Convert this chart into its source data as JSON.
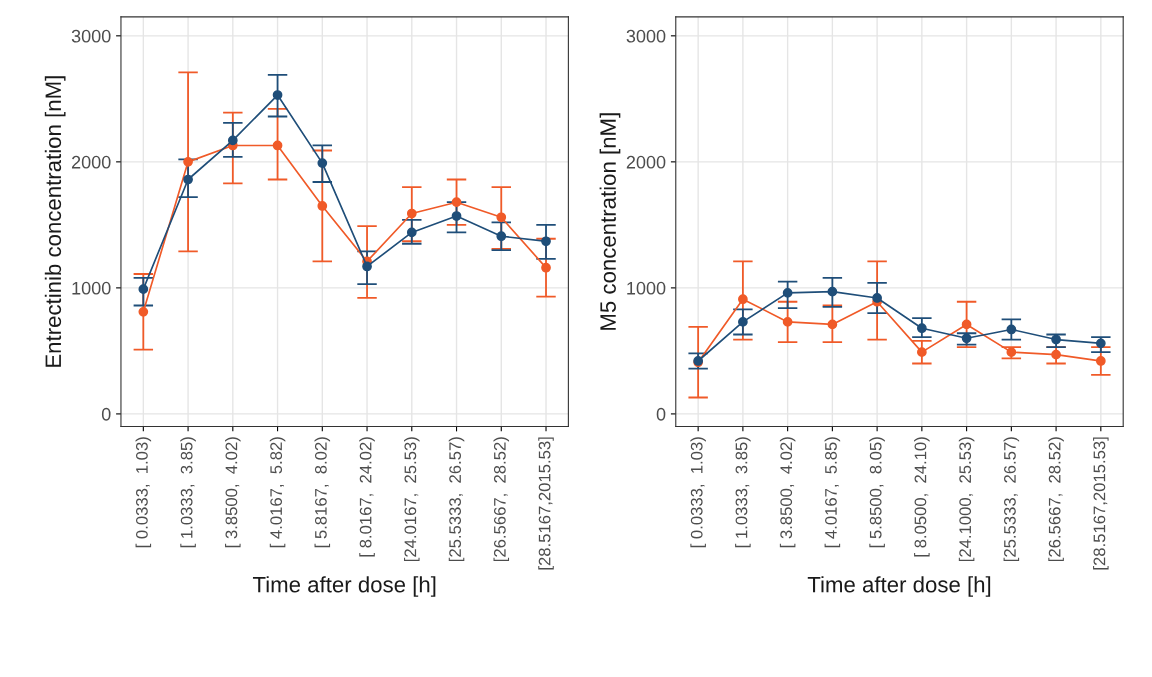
{
  "chart_data": [
    {
      "type": "line",
      "xlabel": "Time after dose [h]",
      "ylabel": "Entrectinib concentration [nM]",
      "categories": [
        "[ 0.0333,  1.03)",
        "[ 1.0333,  3.85)",
        "[ 3.8500,  4.02)",
        "[ 4.0167,  5.82)",
        "[ 5.8167,  8.02)",
        "[ 8.0167,  24.02)",
        "[24.0167,  25.53)",
        "[25.5333,  26.57)",
        "[26.5667,  28.52)",
        "[28.5167,2015.53]"
      ],
      "ylim": [
        -100,
        3150
      ],
      "yticks": [
        0,
        1000,
        2000,
        3000
      ],
      "grid": true,
      "marker": "circle",
      "line_style": "solid",
      "series": [
        {
          "color": "#f05a28",
          "values": [
            810,
            2000,
            2130,
            2130,
            1650,
            1210,
            1590,
            1680,
            1560,
            1160
          ],
          "errors": [
            [
              510,
              1110
            ],
            [
              1290,
              2710
            ],
            [
              1830,
              2390
            ],
            [
              1860,
              2420
            ],
            [
              1210,
              2090
            ],
            [
              920,
              1490
            ],
            [
              1370,
              1800
            ],
            [
              1500,
              1860
            ],
            [
              1310,
              1800
            ],
            [
              930,
              1390
            ]
          ]
        },
        {
          "color": "#1f4e79",
          "values": [
            990,
            1860,
            2170,
            2530,
            1990,
            1170,
            1440,
            1570,
            1410,
            1370
          ],
          "errors": [
            [
              860,
              1080
            ],
            [
              1720,
              2020
            ],
            [
              2040,
              2310
            ],
            [
              2360,
              2690
            ],
            [
              1840,
              2130
            ],
            [
              1030,
              1290
            ],
            [
              1350,
              1540
            ],
            [
              1440,
              1680
            ],
            [
              1300,
              1520
            ],
            [
              1230,
              1500
            ]
          ]
        }
      ]
    },
    {
      "type": "line",
      "xlabel": "Time after dose [h]",
      "ylabel": "M5 concentration [nM]",
      "categories": [
        "[ 0.0333,  1.03)",
        "[ 1.0333,  3.85)",
        "[ 3.8500,  4.02)",
        "[ 4.0167,  5.85)",
        "[ 5.8500,  8.05)",
        "[ 8.0500,  24.10)",
        "[24.1000,  25.53)",
        "[25.5333,  26.57)",
        "[26.5667,  28.52)",
        "[28.5167,2015.53]"
      ],
      "ylim": [
        -100,
        3150
      ],
      "yticks": [
        0,
        1000,
        2000,
        3000
      ],
      "grid": true,
      "marker": "circle",
      "line_style": "solid",
      "series": [
        {
          "color": "#f05a28",
          "values": [
            410,
            910,
            730,
            710,
            890,
            490,
            710,
            490,
            470,
            420
          ],
          "errors": [
            [
              130,
              690
            ],
            [
              590,
              1210
            ],
            [
              570,
              890
            ],
            [
              570,
              860
            ],
            [
              590,
              1210
            ],
            [
              400,
              580
            ],
            [
              530,
              890
            ],
            [
              440,
              530
            ],
            [
              400,
              530
            ],
            [
              310,
              530
            ]
          ]
        },
        {
          "color": "#1f4e79",
          "values": [
            420,
            730,
            960,
            970,
            920,
            680,
            600,
            670,
            590,
            560
          ],
          "errors": [
            [
              360,
              480
            ],
            [
              630,
              830
            ],
            [
              840,
              1050
            ],
            [
              850,
              1080
            ],
            [
              800,
              1040
            ],
            [
              610,
              760
            ],
            [
              550,
              640
            ],
            [
              590,
              750
            ],
            [
              530,
              630
            ],
            [
              490,
              610
            ]
          ]
        }
      ]
    }
  ]
}
